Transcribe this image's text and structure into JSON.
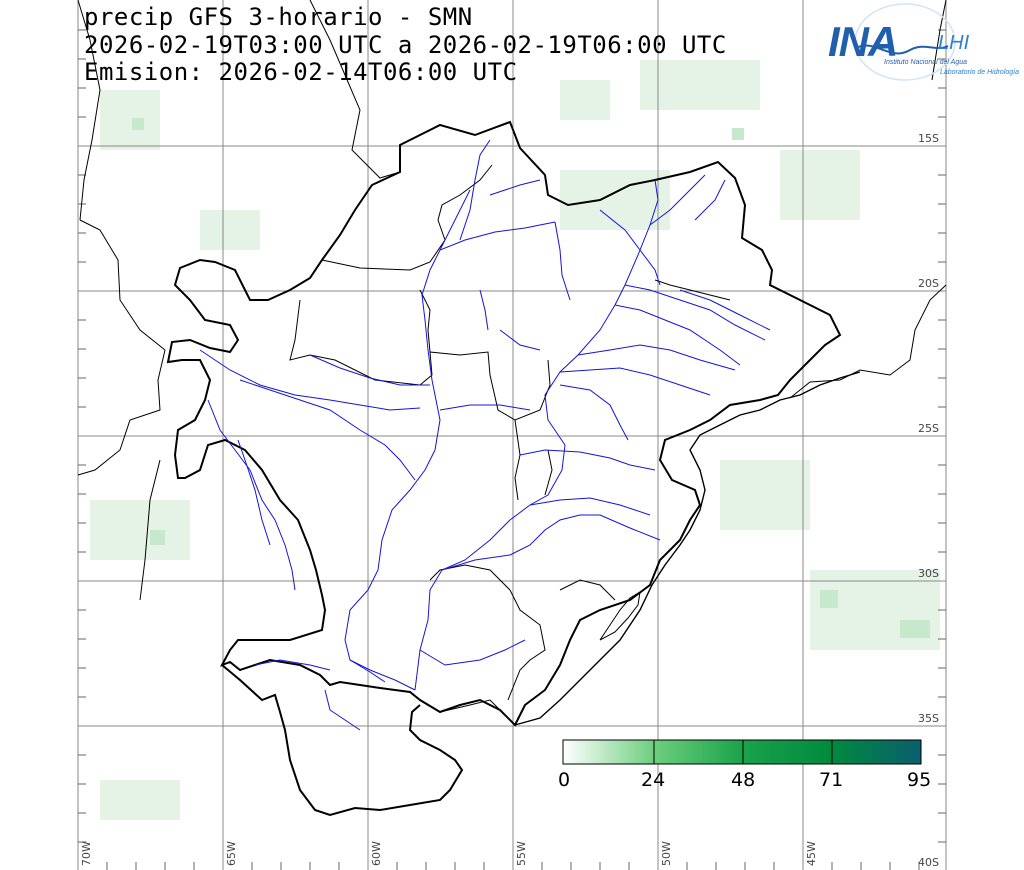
{
  "title": {
    "line1": "precip GFS 3-horario - SMN",
    "line2": "2026-02-19T03:00 UTC a 2026-02-19T06:00 UTC",
    "line3": "Emision: 2026-02-14T06:00 UTC"
  },
  "logo": {
    "main": "INA",
    "lab": "LHI",
    "subtitle": "Instituto Nacional del Agua",
    "lab_subtitle": "Laboratorio de Hidrología"
  },
  "grid": {
    "lat_labels": [
      "15S",
      "20S",
      "25S",
      "30S",
      "35S",
      "40S"
    ],
    "lon_labels": [
      "70W",
      "65W",
      "60W",
      "55W",
      "50W",
      "45W"
    ]
  },
  "colorbar": {
    "ticks": [
      "0",
      "24",
      "48",
      "71",
      "95"
    ],
    "colors": [
      "#ffffff",
      "#6fcf7f",
      "#1aa34a",
      "#008a3e",
      "#0b5e6e"
    ],
    "unit": ""
  },
  "colors": {
    "grid": "#8a8a8a",
    "coast": "#000000",
    "rivers": "#1414d8",
    "precip_light": "#e6f4e8",
    "precip_med": "#b9e4bf"
  }
}
